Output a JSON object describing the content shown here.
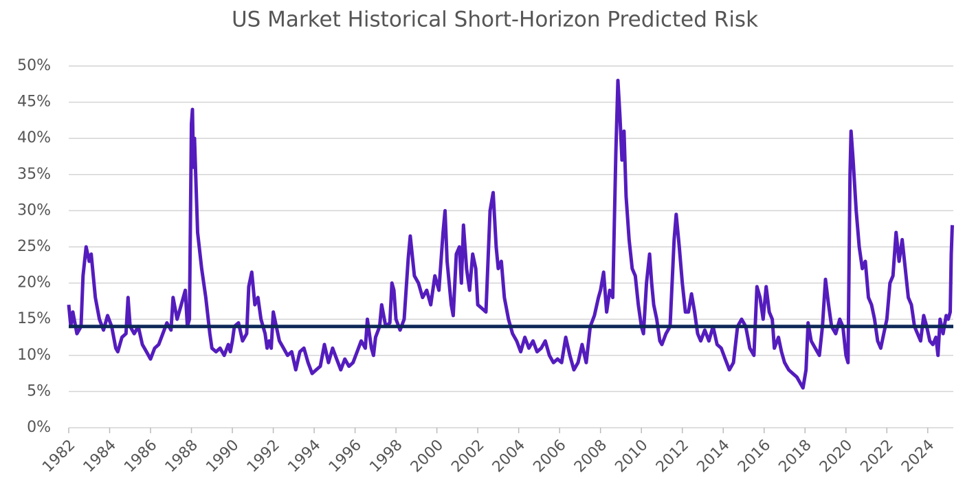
{
  "chart_data": {
    "type": "line",
    "title": "US Market Historical Short-Horizon Predicted Risk",
    "x": [
      1982.0,
      1982.1,
      1982.2,
      1982.4,
      1982.6,
      1982.7,
      1982.85,
      1983.0,
      1983.1,
      1983.3,
      1983.5,
      1983.7,
      1983.9,
      1984.1,
      1984.3,
      1984.4,
      1984.6,
      1984.8,
      1984.9,
      1985.0,
      1985.2,
      1985.4,
      1985.6,
      1985.8,
      1986.0,
      1986.2,
      1986.4,
      1986.6,
      1986.8,
      1987.0,
      1987.1,
      1987.3,
      1987.5,
      1987.7,
      1987.8,
      1987.9,
      1988.0,
      1988.05,
      1988.1,
      1988.15,
      1988.3,
      1988.5,
      1988.7,
      1988.9,
      1989.0,
      1989.2,
      1989.4,
      1989.6,
      1989.8,
      1989.9,
      1990.0,
      1990.1,
      1990.3,
      1990.5,
      1990.7,
      1990.8,
      1990.95,
      1991.1,
      1991.25,
      1991.4,
      1991.6,
      1991.7,
      1991.8,
      1991.9,
      1992.0,
      1992.15,
      1992.3,
      1992.5,
      1992.7,
      1992.9,
      1993.1,
      1993.3,
      1993.5,
      1993.7,
      1993.9,
      1994.1,
      1994.3,
      1994.5,
      1994.7,
      1994.9,
      1995.1,
      1995.3,
      1995.5,
      1995.7,
      1995.9,
      1996.1,
      1996.3,
      1996.5,
      1996.6,
      1996.8,
      1996.9,
      1997.0,
      1997.2,
      1997.3,
      1997.5,
      1997.7,
      1997.8,
      1997.9,
      1998.0,
      1998.2,
      1998.4,
      1998.6,
      1998.7,
      1998.9,
      1999.1,
      1999.3,
      1999.5,
      1999.7,
      1999.9,
      2000.1,
      2000.3,
      2000.4,
      2000.5,
      2000.6,
      2000.7,
      2000.8,
      2000.95,
      2001.1,
      2001.2,
      2001.3,
      2001.45,
      2001.6,
      2001.75,
      2001.9,
      2002.0,
      2002.2,
      2002.4,
      2002.6,
      2002.75,
      2002.9,
      2003.0,
      2003.15,
      2003.3,
      2003.5,
      2003.7,
      2003.9,
      2004.1,
      2004.3,
      2004.5,
      2004.7,
      2004.9,
      2005.1,
      2005.3,
      2005.5,
      2005.7,
      2005.9,
      2006.1,
      2006.3,
      2006.5,
      2006.7,
      2006.9,
      2007.1,
      2007.3,
      2007.5,
      2007.7,
      2007.9,
      2008.0,
      2008.15,
      2008.3,
      2008.45,
      2008.6,
      2008.75,
      2008.85,
      2008.95,
      2009.05,
      2009.15,
      2009.25,
      2009.4,
      2009.55,
      2009.7,
      2009.85,
      2010.0,
      2010.1,
      2010.25,
      2010.4,
      2010.5,
      2010.6,
      2010.75,
      2010.9,
      2011.0,
      2011.2,
      2011.4,
      2011.6,
      2011.7,
      2011.85,
      2012.0,
      2012.15,
      2012.3,
      2012.45,
      2012.6,
      2012.75,
      2012.9,
      2013.1,
      2013.3,
      2013.5,
      2013.7,
      2013.9,
      2014.1,
      2014.3,
      2014.5,
      2014.7,
      2014.9,
      2015.1,
      2015.3,
      2015.5,
      2015.65,
      2015.8,
      2015.95,
      2016.1,
      2016.25,
      2016.4,
      2016.5,
      2016.7,
      2016.85,
      2017.0,
      2017.2,
      2017.4,
      2017.6,
      2017.8,
      2017.9,
      2018.05,
      2018.15,
      2018.3,
      2018.5,
      2018.7,
      2018.85,
      2019.0,
      2019.15,
      2019.3,
      2019.5,
      2019.7,
      2019.85,
      2020.0,
      2020.1,
      2020.2,
      2020.25,
      2020.35,
      2020.5,
      2020.65,
      2020.8,
      2020.95,
      2021.1,
      2021.25,
      2021.4,
      2021.55,
      2021.7,
      2021.85,
      2022.0,
      2022.15,
      2022.3,
      2022.45,
      2022.6,
      2022.75,
      2022.9,
      2023.05,
      2023.2,
      2023.35,
      2023.5,
      2023.65,
      2023.8,
      2023.95,
      2024.1,
      2024.25,
      2024.4,
      2024.5,
      2024.6,
      2024.75,
      2024.9,
      2025.0,
      2025.1,
      2025.15,
      2025.2
    ],
    "values": [
      17,
      14,
      16,
      13,
      14,
      21,
      25,
      23,
      24,
      18,
      15,
      13.5,
      15.5,
      14,
      11,
      10.5,
      12.5,
      13,
      18,
      14,
      13,
      14,
      11.5,
      10.5,
      9.5,
      11,
      11.5,
      13,
      14.5,
      13.5,
      18,
      15,
      17,
      19,
      14,
      15,
      42,
      44,
      36,
      40,
      27,
      22,
      18,
      13,
      11,
      10.5,
      11,
      10,
      11.5,
      10.5,
      12,
      14,
      14.5,
      12,
      13,
      19.5,
      21.5,
      17,
      18,
      15,
      13,
      11,
      12,
      11,
      16,
      14,
      12,
      11,
      10,
      10.5,
      8,
      10.5,
      11,
      9,
      7.5,
      8,
      8.5,
      11.5,
      9,
      11,
      9.5,
      8,
      9.5,
      8.5,
      9,
      10.5,
      12,
      11,
      15,
      11,
      10,
      12.5,
      14,
      17,
      14,
      14.5,
      20,
      19,
      15,
      13.5,
      15,
      23.5,
      26.5,
      21,
      20,
      18,
      19,
      17,
      21,
      19,
      27,
      30,
      23,
      20,
      17,
      15.5,
      24,
      25,
      20,
      28,
      22,
      19,
      24,
      22,
      17,
      16.5,
      16,
      30,
      32.5,
      25,
      22,
      23,
      18,
      15,
      13,
      12,
      10.5,
      12.5,
      11,
      12,
      10.5,
      11,
      12,
      10,
      9,
      9.5,
      9,
      12.5,
      10,
      8,
      9,
      11.5,
      9,
      14,
      15.5,
      18,
      19,
      21.5,
      16,
      19,
      18,
      38,
      48,
      43,
      37,
      41,
      32,
      26,
      22,
      21,
      17,
      14,
      13,
      20,
      24,
      20,
      17,
      15,
      12,
      11.5,
      13,
      14,
      26,
      29.5,
      25,
      20,
      16,
      16,
      18.5,
      16,
      13,
      12,
      13.5,
      12,
      14,
      11.5,
      11,
      9.5,
      8,
      9,
      14,
      15,
      14,
      11,
      10,
      19.5,
      18,
      15,
      19.5,
      16,
      15,
      11,
      12.5,
      10.5,
      9,
      8,
      7.5,
      7,
      6,
      5.5,
      8,
      14.5,
      12,
      11,
      10,
      14,
      20.5,
      17,
      14,
      13,
      15,
      14,
      10,
      9,
      35,
      41,
      37,
      30,
      25,
      22,
      23,
      18,
      17,
      15,
      12,
      11,
      13,
      15,
      20,
      21,
      27,
      23,
      26,
      22,
      18,
      17,
      14,
      13,
      12,
      15.5,
      14,
      12,
      11.5,
      12.5,
      10,
      15,
      13,
      15.5,
      15,
      16,
      24,
      28
    ],
    "color": "#541cbd",
    "reference_line": 14,
    "reference_color": "#0d2858",
    "xlim": [
      1982,
      2025.25
    ],
    "xticks": [
      1982,
      1984,
      1986,
      1988,
      1990,
      1992,
      1994,
      1996,
      1998,
      2000,
      2002,
      2004,
      2006,
      2008,
      2010,
      2012,
      2014,
      2016,
      2018,
      2020,
      2022,
      2024
    ],
    "ylim": [
      0,
      50
    ],
    "yticks": [
      {
        "value": 0,
        "label": "0%"
      },
      {
        "value": 5,
        "label": "5%"
      },
      {
        "value": 10,
        "label": "10%"
      },
      {
        "value": 15,
        "label": "15%"
      },
      {
        "value": 20,
        "label": "20%"
      },
      {
        "value": 25,
        "label": "25%"
      },
      {
        "value": 30,
        "label": "30%"
      },
      {
        "value": 35,
        "label": "35%"
      },
      {
        "value": 40,
        "label": "40%"
      },
      {
        "value": 45,
        "label": "45%"
      },
      {
        "value": 50,
        "label": "50%"
      }
    ],
    "grid": true
  }
}
